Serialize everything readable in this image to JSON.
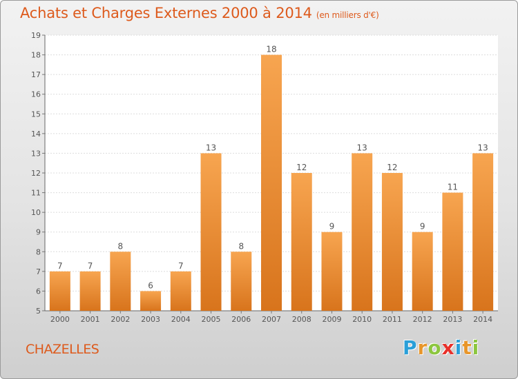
{
  "title": "Achats et Charges Externes 2000 à 2014",
  "subtitle": "(en milliers d'€)",
  "place": "CHAZELLES",
  "logo": {
    "letters": [
      "P",
      "r",
      "o",
      "x",
      "i",
      "t",
      "i"
    ],
    "colors": [
      "#2a9fd8",
      "#e8962a",
      "#8cc63f",
      "#e8302a",
      "#2a9fd8",
      "#e8962a",
      "#8cc63f"
    ]
  },
  "colors": {
    "title": "#dd5a1c",
    "bar_top": "#f7a550",
    "bar_bottom": "#d8741c",
    "label": "#555555"
  },
  "chart_data": {
    "type": "bar",
    "categories": [
      "2000",
      "2001",
      "2002",
      "2003",
      "2004",
      "2005",
      "2006",
      "2007",
      "2008",
      "2009",
      "2010",
      "2011",
      "2012",
      "2013",
      "2014"
    ],
    "values": [
      7,
      7,
      8,
      6,
      7,
      13,
      8,
      18,
      12,
      9,
      13,
      12,
      9,
      11,
      13
    ],
    "ylim": [
      5,
      19
    ],
    "yticks": [
      5,
      6,
      7,
      8,
      9,
      10,
      11,
      12,
      13,
      14,
      15,
      16,
      17,
      18,
      19
    ],
    "grid": true
  }
}
